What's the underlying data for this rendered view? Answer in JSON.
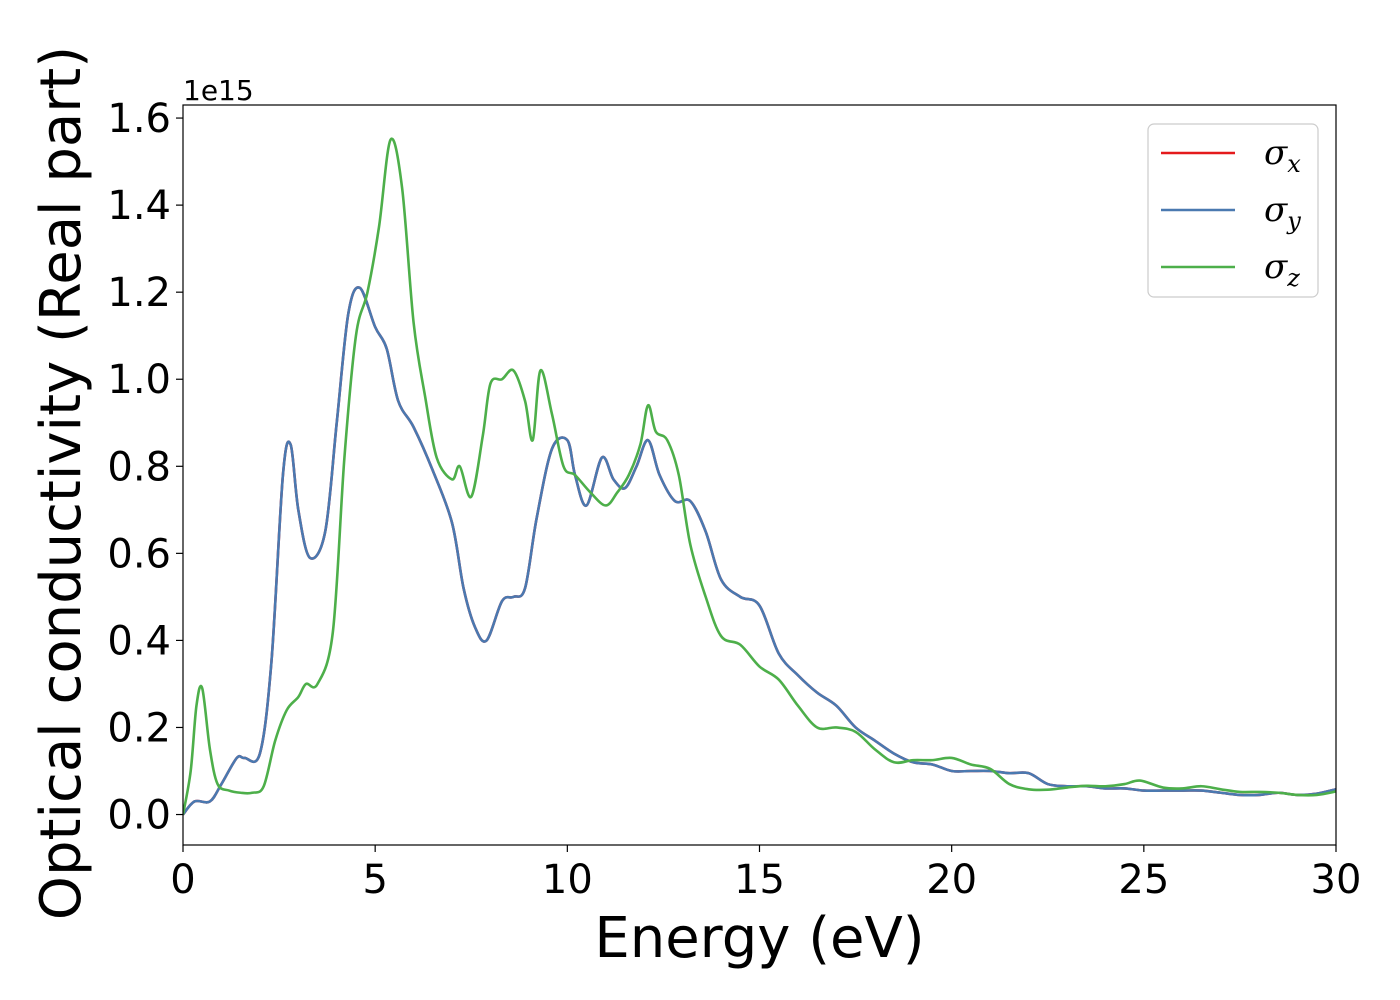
{
  "chart_data": {
    "type": "line",
    "xlabel": "Energy (eV)",
    "ylabel": "Optical conductivity (Real part)",
    "y_offset_label": "1e15",
    "xlim": [
      0,
      30
    ],
    "ylim": [
      -0.07,
      1.63
    ],
    "x_ticks": [
      0,
      5,
      10,
      15,
      20,
      25,
      30
    ],
    "x_tick_labels": [
      "0",
      "5",
      "10",
      "15",
      "20",
      "25",
      "30"
    ],
    "y_ticks": [
      0.0,
      0.2,
      0.4,
      0.6,
      0.8,
      1.0,
      1.2,
      1.4,
      1.6
    ],
    "y_tick_labels": [
      "0.0",
      "0.2",
      "0.4",
      "0.6",
      "0.8",
      "1.0",
      "1.2",
      "1.4",
      "1.6"
    ],
    "grid": false,
    "legend_position": "top-right",
    "series": [
      {
        "name": "σx",
        "legend_symbol": "σ",
        "legend_subscript": "x",
        "color": "#e41a1c",
        "x": [
          0,
          0.3,
          0.7,
          1.0,
          1.4,
          1.6,
          2.0,
          2.3,
          2.6,
          2.8,
          3.0,
          3.3,
          3.7,
          4.0,
          4.3,
          4.6,
          5.0,
          5.3,
          5.6,
          6.0,
          6.5,
          7.0,
          7.3,
          7.6,
          7.9,
          8.3,
          8.6,
          8.9,
          9.2,
          9.6,
          10.0,
          10.2,
          10.5,
          10.9,
          11.2,
          11.5,
          11.8,
          12.1,
          12.4,
          12.8,
          13.2,
          13.6,
          14.0,
          14.5,
          15.0,
          15.5,
          16.0,
          16.5,
          17.0,
          17.5,
          18.0,
          18.5,
          19.0,
          19.5,
          20.0,
          20.5,
          21.0,
          21.5,
          22.0,
          22.5,
          23.0,
          23.5,
          24.0,
          24.5,
          25.0,
          25.5,
          26.0,
          26.5,
          27.0,
          27.5,
          28.0,
          28.5,
          29.0,
          29.5,
          30.0
        ],
        "y": [
          0.0,
          0.03,
          0.03,
          0.07,
          0.13,
          0.13,
          0.14,
          0.35,
          0.78,
          0.85,
          0.7,
          0.59,
          0.65,
          0.9,
          1.15,
          1.21,
          1.12,
          1.07,
          0.95,
          0.89,
          0.79,
          0.67,
          0.52,
          0.43,
          0.4,
          0.49,
          0.5,
          0.52,
          0.68,
          0.84,
          0.86,
          0.78,
          0.71,
          0.82,
          0.77,
          0.75,
          0.8,
          0.86,
          0.78,
          0.72,
          0.72,
          0.65,
          0.54,
          0.5,
          0.48,
          0.37,
          0.32,
          0.28,
          0.25,
          0.2,
          0.17,
          0.14,
          0.12,
          0.115,
          0.1,
          0.1,
          0.1,
          0.095,
          0.095,
          0.07,
          0.065,
          0.065,
          0.06,
          0.06,
          0.055,
          0.055,
          0.055,
          0.055,
          0.05,
          0.045,
          0.045,
          0.05,
          0.045,
          0.048,
          0.058
        ]
      },
      {
        "name": "σy",
        "legend_symbol": "σ",
        "legend_subscript": "y",
        "color": "#4a79b0",
        "x": [
          0,
          0.3,
          0.7,
          1.0,
          1.4,
          1.6,
          2.0,
          2.3,
          2.6,
          2.8,
          3.0,
          3.3,
          3.7,
          4.0,
          4.3,
          4.6,
          5.0,
          5.3,
          5.6,
          6.0,
          6.5,
          7.0,
          7.3,
          7.6,
          7.9,
          8.3,
          8.6,
          8.9,
          9.2,
          9.6,
          10.0,
          10.2,
          10.5,
          10.9,
          11.2,
          11.5,
          11.8,
          12.1,
          12.4,
          12.8,
          13.2,
          13.6,
          14.0,
          14.5,
          15.0,
          15.5,
          16.0,
          16.5,
          17.0,
          17.5,
          18.0,
          18.5,
          19.0,
          19.5,
          20.0,
          20.5,
          21.0,
          21.5,
          22.0,
          22.5,
          23.0,
          23.5,
          24.0,
          24.5,
          25.0,
          25.5,
          26.0,
          26.5,
          27.0,
          27.5,
          28.0,
          28.5,
          29.0,
          29.5,
          30.0
        ],
        "y": [
          0.0,
          0.03,
          0.03,
          0.07,
          0.13,
          0.13,
          0.14,
          0.35,
          0.78,
          0.85,
          0.7,
          0.59,
          0.65,
          0.9,
          1.15,
          1.21,
          1.12,
          1.07,
          0.95,
          0.89,
          0.79,
          0.67,
          0.52,
          0.43,
          0.4,
          0.49,
          0.5,
          0.52,
          0.68,
          0.84,
          0.86,
          0.78,
          0.71,
          0.82,
          0.77,
          0.75,
          0.8,
          0.86,
          0.78,
          0.72,
          0.72,
          0.65,
          0.54,
          0.5,
          0.48,
          0.37,
          0.32,
          0.28,
          0.25,
          0.2,
          0.17,
          0.14,
          0.12,
          0.115,
          0.1,
          0.1,
          0.1,
          0.095,
          0.095,
          0.07,
          0.065,
          0.065,
          0.06,
          0.06,
          0.055,
          0.055,
          0.055,
          0.055,
          0.05,
          0.045,
          0.045,
          0.05,
          0.045,
          0.048,
          0.058
        ]
      },
      {
        "name": "σz",
        "legend_symbol": "σ",
        "legend_subscript": "z",
        "color": "#4daf4a",
        "x": [
          0,
          0.2,
          0.35,
          0.5,
          0.7,
          0.9,
          1.2,
          1.5,
          1.8,
          2.1,
          2.4,
          2.7,
          3.0,
          3.2,
          3.5,
          3.9,
          4.2,
          4.5,
          4.8,
          5.1,
          5.4,
          5.7,
          6.0,
          6.3,
          6.6,
          7.0,
          7.2,
          7.5,
          7.8,
          8.0,
          8.3,
          8.6,
          8.9,
          9.1,
          9.3,
          9.6,
          9.9,
          10.2,
          10.6,
          11.0,
          11.3,
          11.6,
          11.9,
          12.1,
          12.3,
          12.6,
          12.9,
          13.2,
          13.6,
          14.0,
          14.5,
          15.0,
          15.5,
          16.0,
          16.5,
          17.0,
          17.5,
          18.0,
          18.5,
          19.0,
          19.5,
          20.0,
          20.5,
          21.0,
          21.5,
          22.0,
          22.5,
          23.0,
          23.5,
          24.0,
          24.5,
          24.9,
          25.5,
          26.0,
          26.5,
          27.0,
          27.5,
          28.0,
          28.5,
          29.0,
          29.5,
          30.0
        ],
        "y": [
          0.0,
          0.1,
          0.25,
          0.29,
          0.15,
          0.07,
          0.055,
          0.05,
          0.05,
          0.065,
          0.17,
          0.24,
          0.27,
          0.3,
          0.3,
          0.42,
          0.82,
          1.1,
          1.2,
          1.35,
          1.55,
          1.44,
          1.13,
          0.96,
          0.82,
          0.77,
          0.8,
          0.73,
          0.87,
          0.99,
          1.0,
          1.02,
          0.95,
          0.86,
          1.02,
          0.92,
          0.8,
          0.78,
          0.74,
          0.71,
          0.74,
          0.78,
          0.85,
          0.94,
          0.88,
          0.86,
          0.78,
          0.62,
          0.5,
          0.41,
          0.39,
          0.34,
          0.31,
          0.25,
          0.2,
          0.2,
          0.19,
          0.15,
          0.12,
          0.125,
          0.125,
          0.13,
          0.115,
          0.105,
          0.07,
          0.058,
          0.057,
          0.062,
          0.066,
          0.065,
          0.07,
          0.078,
          0.062,
          0.06,
          0.065,
          0.058,
          0.052,
          0.052,
          0.05,
          0.045,
          0.045,
          0.053
        ]
      }
    ]
  }
}
